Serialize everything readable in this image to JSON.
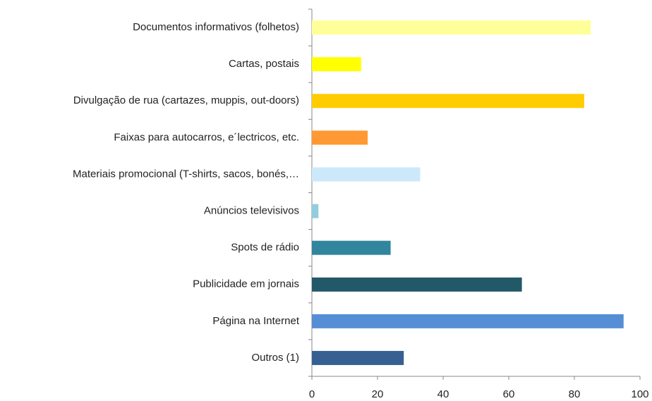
{
  "chart_data": {
    "type": "barh",
    "categories": [
      "Documentos informativos (folhetos)",
      "Cartas, postais",
      "Divulgação de rua (cartazes, muppis, out-doors)",
      "Faixas para autocarros, e´lectricos, etc.",
      "Materiais promocional (T-shirts, sacos, bonés,…",
      "Anúncios televisivos",
      "Spots de rádio",
      "Publicidade em jornais",
      "Página na Internet",
      "Outros (1)"
    ],
    "values": [
      85,
      15,
      83,
      17,
      33,
      2,
      24,
      64,
      95,
      28
    ],
    "colors": [
      "#ffff99",
      "#ffff00",
      "#ffcc00",
      "#ff9933",
      "#cce9fb",
      "#93cddd",
      "#31859c",
      "#215968",
      "#558ed5",
      "#376092"
    ],
    "xlim": [
      0,
      100
    ],
    "xticks": [
      0,
      20,
      40,
      60,
      80,
      100
    ],
    "grid": false
  }
}
